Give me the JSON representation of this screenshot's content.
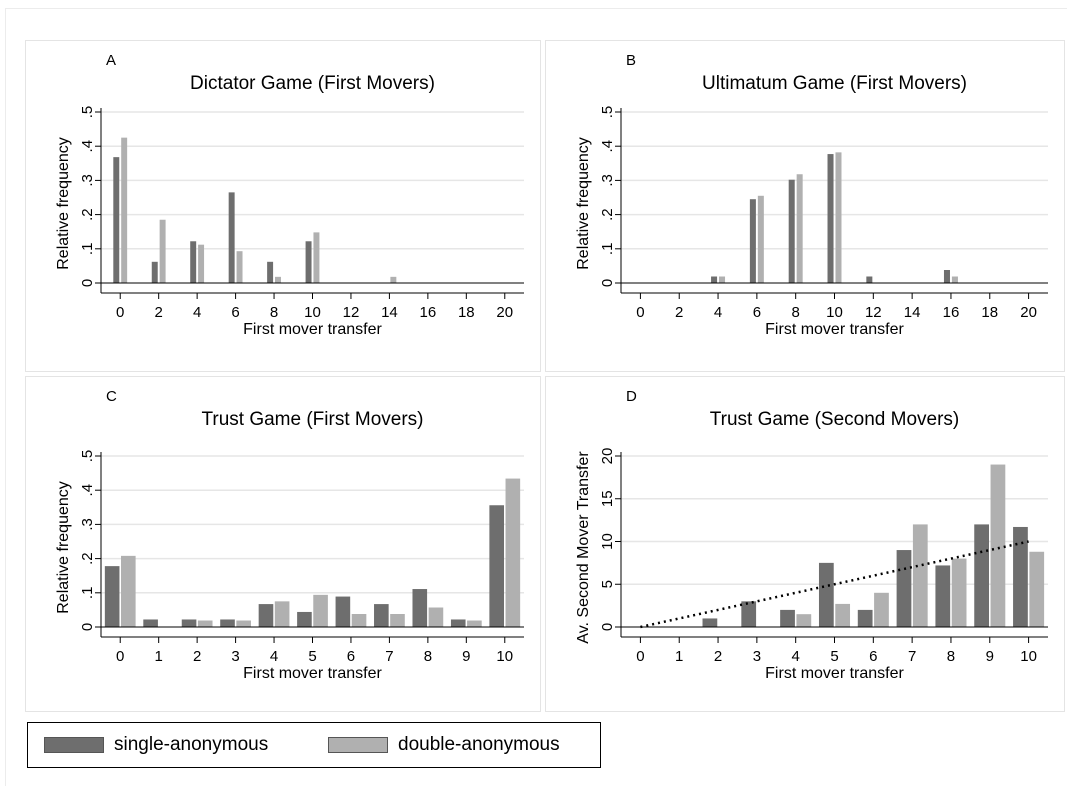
{
  "colors": {
    "single": "#6e6e6e",
    "double": "#b0b0b0",
    "grid": "#e6e6e6",
    "trend": "#000000"
  },
  "legend": {
    "single_label": "single-anonymous",
    "double_label": "double-anonymous"
  },
  "chart_data": [
    {
      "id": "A",
      "type": "bar",
      "letter": "A",
      "title": "Dictator Game (First Movers)",
      "xlabel": "First mover transfer",
      "ylabel": "Relative frequency",
      "xticks": [
        0,
        2,
        4,
        6,
        8,
        10,
        12,
        14,
        16,
        18,
        20
      ],
      "xtick_labels": [
        "0",
        "2",
        "4",
        "6",
        "8",
        "10",
        "12",
        "14",
        "16",
        "18",
        "20"
      ],
      "xlim": [
        -1,
        21
      ],
      "yticks": [
        0,
        0.1,
        0.2,
        0.3,
        0.4,
        0.5
      ],
      "ytick_labels": [
        "0",
        ".1",
        ".2",
        ".3",
        ".4",
        ".5"
      ],
      "ylim": [
        0,
        0.5
      ],
      "grid": true,
      "series": [
        {
          "key": "single",
          "name": "single-anonymous",
          "x": [
            0,
            2,
            4,
            6,
            8,
            10
          ],
          "values": [
            0.368,
            0.062,
            0.122,
            0.265,
            0.062,
            0.122
          ]
        },
        {
          "key": "double",
          "name": "double-anonymous",
          "x": [
            0,
            2,
            4,
            6,
            8,
            10,
            14
          ],
          "values": [
            0.425,
            0.185,
            0.112,
            0.093,
            0.018,
            0.148,
            0.018
          ]
        }
      ]
    },
    {
      "id": "B",
      "type": "bar",
      "letter": "B",
      "title": "Ultimatum Game (First Movers)",
      "xlabel": "First mover transfer",
      "ylabel": "Relative frequency",
      "xticks": [
        0,
        2,
        4,
        6,
        8,
        10,
        12,
        14,
        16,
        18,
        20
      ],
      "xtick_labels": [
        "0",
        "2",
        "4",
        "6",
        "8",
        "10",
        "12",
        "14",
        "16",
        "18",
        "20"
      ],
      "xlim": [
        -1,
        21
      ],
      "yticks": [
        0,
        0.1,
        0.2,
        0.3,
        0.4,
        0.5
      ],
      "ytick_labels": [
        "0",
        ".1",
        ".2",
        ".3",
        ".4",
        ".5"
      ],
      "ylim": [
        0,
        0.5
      ],
      "grid": true,
      "series": [
        {
          "key": "single",
          "name": "single-anonymous",
          "x": [
            4,
            6,
            8,
            10,
            12,
            16
          ],
          "values": [
            0.019,
            0.245,
            0.302,
            0.377,
            0.019,
            0.038
          ]
        },
        {
          "key": "double",
          "name": "double-anonymous",
          "x": [
            4,
            6,
            8,
            10,
            16
          ],
          "values": [
            0.019,
            0.255,
            0.318,
            0.382,
            0.019
          ]
        }
      ]
    },
    {
      "id": "C",
      "type": "bar",
      "letter": "C",
      "title": "Trust Game (First Movers)",
      "xlabel": "First mover transfer",
      "ylabel": "Relative frequency",
      "xticks": [
        0,
        1,
        2,
        3,
        4,
        5,
        6,
        7,
        8,
        9,
        10
      ],
      "xtick_labels": [
        "0",
        "1",
        "2",
        "3",
        "4",
        "5",
        "6",
        "7",
        "8",
        "9",
        "10"
      ],
      "xlim": [
        -0.5,
        10.5
      ],
      "yticks": [
        0,
        0.1,
        0.2,
        0.3,
        0.4,
        0.5
      ],
      "ytick_labels": [
        "0",
        ".1",
        ".2",
        ".3",
        ".4",
        ".5"
      ],
      "ylim": [
        0,
        0.5
      ],
      "grid": true,
      "series": [
        {
          "key": "single",
          "name": "single-anonymous",
          "x": [
            0,
            1,
            2,
            3,
            4,
            5,
            6,
            7,
            8,
            9,
            10
          ],
          "values": [
            0.178,
            0.022,
            0.022,
            0.022,
            0.067,
            0.044,
            0.089,
            0.067,
            0.111,
            0.022,
            0.356
          ]
        },
        {
          "key": "double",
          "name": "double-anonymous",
          "x": [
            0,
            2,
            3,
            4,
            5,
            6,
            7,
            8,
            9,
            10
          ],
          "values": [
            0.208,
            0.019,
            0.019,
            0.075,
            0.094,
            0.038,
            0.038,
            0.057,
            0.019,
            0.434
          ]
        }
      ]
    },
    {
      "id": "D",
      "type": "bar",
      "letter": "D",
      "title": "Trust Game (Second Movers)",
      "xlabel": "First mover transfer",
      "ylabel": "Av. Second Mover Transfer",
      "xticks": [
        0,
        1,
        2,
        3,
        4,
        5,
        6,
        7,
        8,
        9,
        10
      ],
      "xtick_labels": [
        "0",
        "1",
        "2",
        "3",
        "4",
        "5",
        "6",
        "7",
        "8",
        "9",
        "10"
      ],
      "xlim": [
        -0.5,
        10.5
      ],
      "yticks": [
        0,
        5,
        10,
        15,
        20
      ],
      "ytick_labels": [
        "0",
        "5",
        "10",
        "15",
        "20"
      ],
      "ylim": [
        0,
        20
      ],
      "grid": true,
      "series": [
        {
          "key": "single",
          "name": "single-anonymous",
          "x": [
            0,
            2,
            3,
            4,
            5,
            6,
            7,
            8,
            9,
            10
          ],
          "values": [
            0.0,
            1.0,
            3.0,
            2.0,
            7.5,
            2.0,
            9.0,
            7.2,
            12.0,
            11.7
          ]
        },
        {
          "key": "double",
          "name": "double-anonymous",
          "x": [
            4,
            5,
            6,
            7,
            8,
            9,
            10
          ],
          "values": [
            1.5,
            2.7,
            4.0,
            12.0,
            8.0,
            19.0,
            8.8
          ]
        }
      ],
      "trend_line": {
        "x": [
          0,
          10
        ],
        "y": [
          0,
          10
        ]
      }
    }
  ]
}
